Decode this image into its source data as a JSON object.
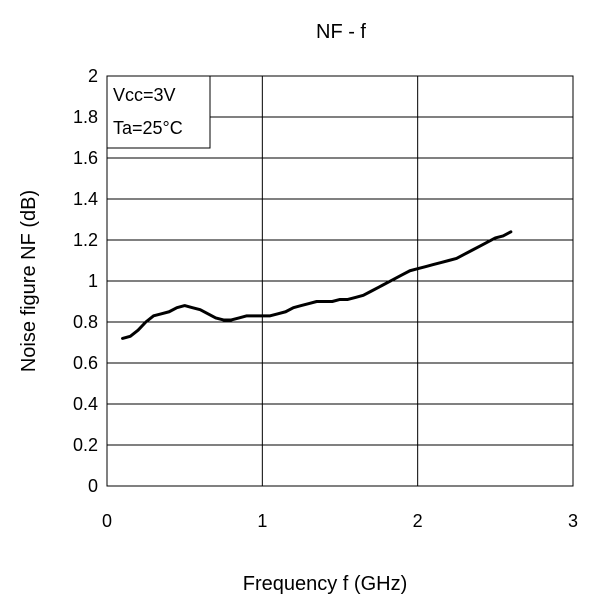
{
  "chart_data": {
    "type": "line",
    "title": "NF - f",
    "xlabel": "Frequency f (GHz)",
    "ylabel": "Noise figure NF (dB)",
    "xlim": [
      0,
      3
    ],
    "ylim": [
      0,
      2
    ],
    "x_ticks": [
      0,
      1,
      2,
      3
    ],
    "x_tick_labels": [
      "0",
      "1",
      "2",
      "3"
    ],
    "y_ticks": [
      0,
      0.2,
      0.4,
      0.6,
      0.8,
      1.0,
      1.2,
      1.4,
      1.6,
      1.8,
      2.0
    ],
    "y_tick_labels": [
      "0",
      "0.2",
      "0.4",
      "0.6",
      "0.8",
      "1",
      "1.2",
      "1.4",
      "1.6",
      "1.8",
      "2"
    ],
    "grid": true,
    "annotations": [
      "Vcc=3V",
      "Ta=25°C"
    ],
    "series": [
      {
        "x": [
          0.1,
          0.15,
          0.2,
          0.25,
          0.3,
          0.35,
          0.4,
          0.45,
          0.5,
          0.55,
          0.6,
          0.65,
          0.7,
          0.75,
          0.8,
          0.85,
          0.9,
          0.95,
          1.0,
          1.05,
          1.1,
          1.15,
          1.2,
          1.25,
          1.3,
          1.35,
          1.4,
          1.45,
          1.5,
          1.55,
          1.6,
          1.65,
          1.7,
          1.75,
          1.8,
          1.85,
          1.9,
          1.95,
          2.0,
          2.05,
          2.1,
          2.15,
          2.2,
          2.25,
          2.3,
          2.35,
          2.4,
          2.45,
          2.5,
          2.55,
          2.6
        ],
        "y": [
          0.72,
          0.73,
          0.76,
          0.8,
          0.83,
          0.84,
          0.85,
          0.87,
          0.88,
          0.87,
          0.86,
          0.84,
          0.82,
          0.81,
          0.81,
          0.82,
          0.83,
          0.83,
          0.83,
          0.83,
          0.84,
          0.85,
          0.87,
          0.88,
          0.89,
          0.9,
          0.9,
          0.9,
          0.91,
          0.91,
          0.92,
          0.93,
          0.95,
          0.97,
          0.99,
          1.01,
          1.03,
          1.05,
          1.06,
          1.07,
          1.08,
          1.09,
          1.1,
          1.11,
          1.13,
          1.15,
          1.17,
          1.19,
          1.21,
          1.22,
          1.24
        ],
        "color": "#000000"
      }
    ]
  }
}
